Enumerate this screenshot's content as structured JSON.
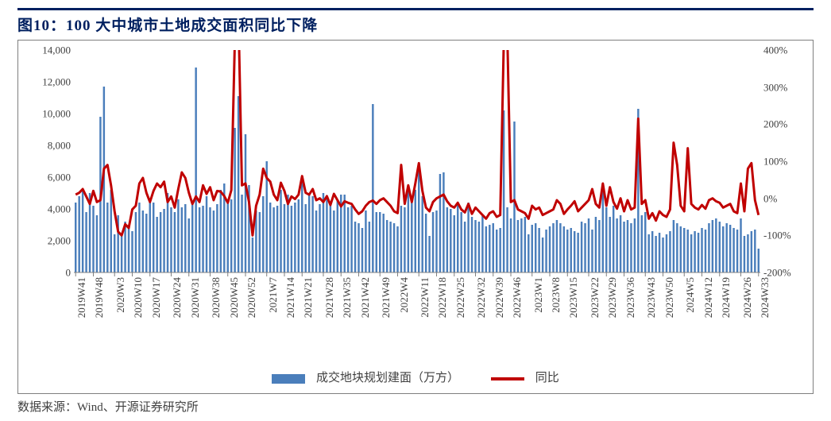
{
  "title": "图10：100 大中城市土地成交面积同比下降",
  "source": "数据来源：Wind、开源证券研究所",
  "legend": {
    "bar": "成交地块规划建面（万方）",
    "line": "同比"
  },
  "chart": {
    "type": "bar+line-dual-axis",
    "background_color": "#ffffff",
    "border_color": "#7f7f7f",
    "title_color": "#002060",
    "title_fontsize": 19,
    "label_fontsize": 13,
    "legend_fontsize": 15,
    "bar_color": "#4a7ebb",
    "line_color": "#c00000",
    "line_width": 3,
    "bar_width_ratio": 0.55,
    "y_left": {
      "min": 0,
      "max": 14000,
      "ticks": [
        0,
        2000,
        4000,
        6000,
        8000,
        10000,
        12000,
        14000
      ]
    },
    "y_right": {
      "min": -200,
      "max": 400,
      "ticks_pct": [
        -200,
        -100,
        0,
        100,
        200,
        300,
        400
      ]
    },
    "x_labels_visible": [
      "2019W41",
      "2019W48",
      "2020W3",
      "2020W10",
      "2020W17",
      "2020W24",
      "2020W31",
      "2020W38",
      "2020W45",
      "2020W52",
      "2021W7",
      "2021W14",
      "2021W21",
      "2021W28",
      "2021W35",
      "2021W42",
      "2021W49",
      "2022W4",
      "2022W11",
      "2022W18",
      "2022W25",
      "2022W32",
      "2022W39",
      "2022W46",
      "2023W1",
      "2023W8",
      "2023W15",
      "2023W22",
      "2023W29",
      "2023W36",
      "2023W43",
      "2023W50",
      "2024W5",
      "2024W12",
      "2024W19",
      "2024W26",
      "2024W33"
    ],
    "bars": [
      4400,
      4800,
      5200,
      3800,
      5000,
      4200,
      3600,
      9800,
      11700,
      4400,
      5200,
      2400,
      3600,
      2400,
      3200,
      3000,
      2600,
      3800,
      4400,
      3900,
      3700,
      4600,
      4400,
      3500,
      3800,
      4000,
      5000,
      4100,
      3800,
      4600,
      4100,
      4300,
      3400,
      4500,
      12900,
      4100,
      4200,
      4800,
      4100,
      3900,
      4300,
      5200,
      5600,
      4400,
      4600,
      9100,
      11100,
      4900,
      8700,
      5500,
      2200,
      3900,
      3800,
      4800,
      7000,
      4400,
      4100,
      4200,
      5200,
      4300,
      4900,
      4200,
      4400,
      4600,
      5800,
      4300,
      4900,
      4800,
      3900,
      4300,
      5000,
      4800,
      4400,
      3900,
      4500,
      4900,
      4900,
      4100,
      4200,
      3200,
      3100,
      2800,
      3900,
      3200,
      10600,
      3800,
      3800,
      3700,
      3300,
      3200,
      3100,
      2900,
      4200,
      4100,
      5300,
      4600,
      5200,
      6600,
      4800,
      3700,
      2300,
      3800,
      3900,
      6200,
      6300,
      4100,
      4000,
      3600,
      4400,
      3800,
      3200,
      4400,
      3500,
      3300,
      3200,
      3600,
      2900,
      3000,
      3100,
      2700,
      2800,
      10200,
      4100,
      3400,
      9500,
      3300,
      3400,
      3500,
      2400,
      3000,
      3100,
      2800,
      2200,
      2700,
      2900,
      3100,
      3300,
      3100,
      2900,
      2700,
      2800,
      2600,
      2500,
      3200,
      3100,
      3400,
      2700,
      3500,
      3300,
      5300,
      4100,
      3500,
      4200,
      3400,
      3600,
      3200,
      3300,
      3100,
      3400,
      10300,
      3600,
      3800,
      2400,
      2600,
      2300,
      2500,
      2200,
      2400,
      2600,
      3300,
      3100,
      2900,
      2800,
      2700,
      2400,
      2600,
      2500,
      2800,
      2700,
      3100,
      3300,
      3400,
      3200,
      2900,
      3100,
      3000,
      2800,
      2700,
      3400,
      2300,
      2400,
      2600,
      2700,
      1500
    ],
    "line_pct": [
      10,
      15,
      25,
      5,
      -15,
      20,
      -10,
      -5,
      80,
      90,
      35,
      -35,
      -90,
      -100,
      -70,
      -80,
      -30,
      -20,
      40,
      55,
      15,
      -10,
      20,
      40,
      30,
      45,
      -10,
      5,
      -25,
      25,
      70,
      55,
      15,
      -15,
      5,
      -10,
      35,
      12,
      30,
      -5,
      20,
      18,
      6,
      -12,
      22,
      430,
      500,
      35,
      40,
      -10,
      -100,
      -20,
      10,
      80,
      55,
      45,
      10,
      -5,
      42,
      20,
      -15,
      5,
      -2,
      10,
      60,
      15,
      10,
      25,
      -5,
      0,
      -10,
      6,
      -18,
      12,
      -5,
      -22,
      -8,
      -12,
      -15,
      -30,
      -42,
      -35,
      -20,
      -10,
      -6,
      -15,
      -5,
      0,
      -10,
      -20,
      -35,
      -40,
      90,
      -15,
      35,
      -10,
      40,
      95,
      20,
      -25,
      -35,
      -10,
      0,
      5,
      10,
      -8,
      -20,
      -25,
      -12,
      -30,
      -38,
      -15,
      -42,
      -25,
      -35,
      -45,
      -55,
      -40,
      -35,
      -50,
      -45,
      420,
      440,
      -10,
      -5,
      -30,
      -35,
      -40,
      -55,
      -20,
      -30,
      -25,
      -45,
      -40,
      -35,
      -30,
      -5,
      -15,
      -42,
      -30,
      -20,
      -8,
      -35,
      -25,
      -15,
      -5,
      25,
      -15,
      -25,
      40,
      -20,
      30,
      -10,
      -28,
      0,
      -35,
      -5,
      -30,
      -25,
      215,
      -15,
      -5,
      -55,
      -40,
      -60,
      -35,
      -45,
      -50,
      -30,
      150,
      90,
      -20,
      -35,
      135,
      -15,
      -25,
      -30,
      -18,
      -28,
      -5,
      0,
      -8,
      -12,
      -25,
      -20,
      -15,
      -35,
      -40,
      40,
      -35,
      80,
      95,
      -5,
      -45
    ]
  }
}
